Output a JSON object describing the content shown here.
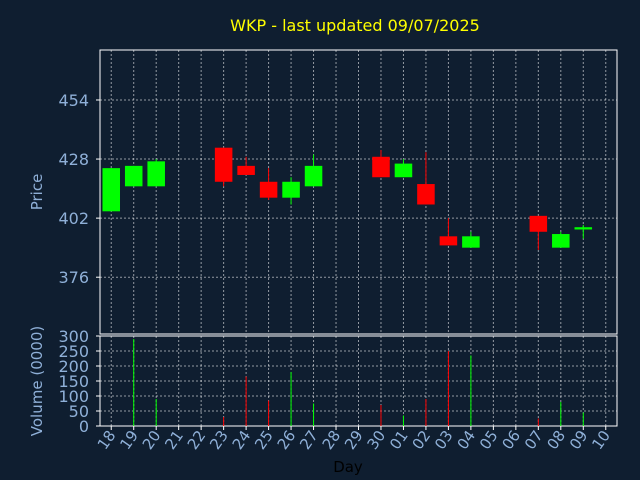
{
  "colors": {
    "background": "#0f1e30",
    "title": "#ffff00",
    "label": "#8fb0d8",
    "up": "#00ff00",
    "down": "#ff0000",
    "grid": "#ffffff"
  },
  "chart_data": [
    {
      "type": "candlestick",
      "title": "WKP - last updated 09/07/2025",
      "ylabel": "Price",
      "ylim": [
        351,
        476
      ],
      "yticks": [
        376,
        402,
        428,
        454
      ],
      "x": [
        "18",
        "19",
        "20",
        "21",
        "22",
        "23",
        "24",
        "25",
        "26",
        "27",
        "28",
        "29",
        "30",
        "01",
        "02",
        "03",
        "04",
        "05",
        "06",
        "07",
        "08",
        "09",
        "10"
      ],
      "candles": [
        {
          "x": "18",
          "open": 405,
          "close": 424,
          "high": 424,
          "low": 405
        },
        {
          "x": "19",
          "open": 416,
          "close": 425,
          "high": 425,
          "low": 416
        },
        {
          "x": "20",
          "open": 416,
          "close": 427,
          "high": 428,
          "low": 416
        },
        {
          "x": "23",
          "open": 433,
          "close": 418,
          "high": 433,
          "low": 416
        },
        {
          "x": "24",
          "open": 425,
          "close": 421,
          "high": 429,
          "low": 421
        },
        {
          "x": "25",
          "open": 418,
          "close": 411,
          "high": 424,
          "low": 410
        },
        {
          "x": "26",
          "open": 411,
          "close": 418,
          "high": 420,
          "low": 408
        },
        {
          "x": "27",
          "open": 416,
          "close": 425,
          "high": 430,
          "low": 416
        },
        {
          "x": "30",
          "open": 429,
          "close": 420,
          "high": 432,
          "low": 420
        },
        {
          "x": "01",
          "open": 420,
          "close": 426,
          "high": 428,
          "low": 420
        },
        {
          "x": "02",
          "open": 417,
          "close": 408,
          "high": 431,
          "low": 408
        },
        {
          "x": "03",
          "open": 394,
          "close": 390,
          "high": 402,
          "low": 390
        },
        {
          "x": "04",
          "open": 389,
          "close": 394,
          "high": 396,
          "low": 389
        },
        {
          "x": "07",
          "open": 403,
          "close": 396,
          "high": 403,
          "low": 388
        },
        {
          "x": "08",
          "open": 389,
          "close": 395,
          "high": 396,
          "low": 389
        },
        {
          "x": "09",
          "open": 397,
          "close": 398,
          "high": 399,
          "low": 393
        }
      ]
    },
    {
      "type": "bar",
      "ylabel": "Volume (0000)",
      "xlabel": "Day",
      "ylim": [
        0,
        300
      ],
      "yticks": [
        0,
        50,
        100,
        150,
        200,
        250,
        300
      ],
      "bars": [
        {
          "x": "19",
          "value": 290,
          "dir": "up"
        },
        {
          "x": "20",
          "value": 90,
          "dir": "up"
        },
        {
          "x": "23",
          "value": 30,
          "dir": "down"
        },
        {
          "x": "24",
          "value": 165,
          "dir": "down"
        },
        {
          "x": "25",
          "value": 85,
          "dir": "down"
        },
        {
          "x": "26",
          "value": 180,
          "dir": "up"
        },
        {
          "x": "27",
          "value": 75,
          "dir": "up"
        },
        {
          "x": "30",
          "value": 70,
          "dir": "down"
        },
        {
          "x": "01",
          "value": 35,
          "dir": "up"
        },
        {
          "x": "02",
          "value": 90,
          "dir": "down"
        },
        {
          "x": "03",
          "value": 250,
          "dir": "down"
        },
        {
          "x": "04",
          "value": 235,
          "dir": "up"
        },
        {
          "x": "07",
          "value": 25,
          "dir": "down"
        },
        {
          "x": "08",
          "value": 80,
          "dir": "up"
        },
        {
          "x": "09",
          "value": 45,
          "dir": "up"
        }
      ]
    }
  ]
}
